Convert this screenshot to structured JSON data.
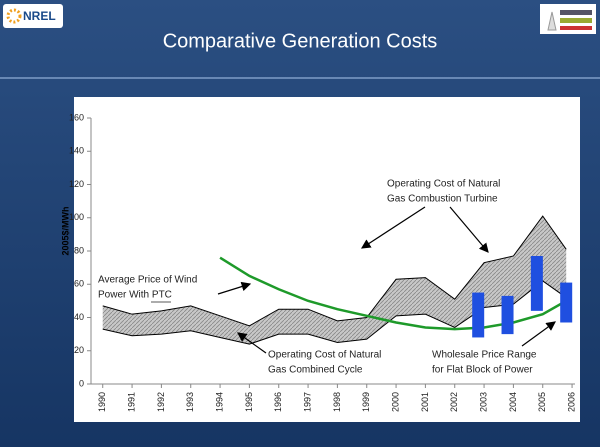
{
  "header": {
    "logo": "NREL",
    "title": "Comparative Generation Costs"
  },
  "chart_data": {
    "type": "line",
    "ylabel": "2005$/MWh",
    "xlim": [
      1989.6,
      2006.1
    ],
    "xticks": [
      1990,
      1991,
      1992,
      1993,
      1994,
      1995,
      1996,
      1997,
      1998,
      1999,
      2000,
      2001,
      2002,
      2003,
      2004,
      2005,
      2006
    ],
    "ylim": [
      0,
      160
    ],
    "yticks": [
      0,
      20,
      40,
      60,
      80,
      100,
      120,
      140,
      160
    ],
    "band": {
      "x": [
        1990,
        1991,
        1992,
        1993,
        1994,
        1995,
        1996,
        1997,
        1998,
        1999,
        2000,
        2001,
        2002,
        2003,
        2004,
        2005,
        2005.8
      ],
      "upper": [
        47,
        42,
        44,
        47,
        41,
        35,
        45,
        45,
        38,
        40,
        63,
        64,
        51,
        73,
        77,
        101,
        81
      ],
      "lower": [
        33,
        29,
        30,
        32,
        28,
        24,
        30,
        30,
        25,
        27,
        41,
        42,
        34,
        46,
        48,
        62,
        52
      ]
    },
    "wind": {
      "color": "#1e9a2a",
      "x": [
        1994,
        1995,
        1996,
        1997,
        1998,
        1999,
        2000,
        2001,
        2002,
        2003,
        2004,
        2005,
        2005.8
      ],
      "values": [
        76,
        65,
        57,
        50,
        45,
        41,
        37,
        34,
        33,
        34,
        37,
        42,
        50
      ]
    },
    "ranges": {
      "color": "#1f4fe0",
      "x": [
        2002.8,
        2003.8,
        2004.8,
        2005.8
      ],
      "low": [
        28,
        30,
        44,
        37
      ],
      "high": [
        55,
        53,
        77,
        61
      ]
    },
    "annotations": {
      "turbine": [
        "Operating Cost of Natural",
        "Gas Combustion Turbine"
      ],
      "wind": [
        "Average Price of Wind",
        "Power With PTC"
      ],
      "combined": [
        "Operating Cost of Natural",
        "Gas Combined Cycle"
      ],
      "wholesale": [
        "Wholesale Price Range",
        "for Flat Block of Power"
      ]
    }
  }
}
